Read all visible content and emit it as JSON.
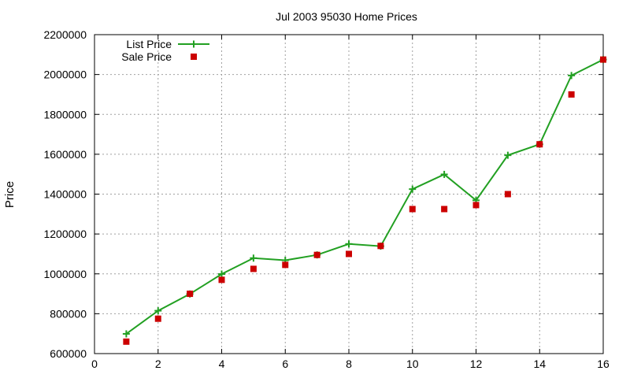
{
  "chart_data": {
    "type": "line",
    "title": "Jul 2003 95030 Home Prices",
    "xlabel": "",
    "ylabel": "Price",
    "xlim": [
      0,
      16
    ],
    "ylim": [
      600000,
      2200000
    ],
    "x_ticks": [
      0,
      2,
      4,
      6,
      8,
      10,
      12,
      14,
      16
    ],
    "y_ticks": [
      600000,
      800000,
      1000000,
      1200000,
      1400000,
      1600000,
      1800000,
      2000000,
      2200000
    ],
    "grid": true,
    "legend_position": "top-left",
    "series": [
      {
        "name": "List Price",
        "style": "lines+points",
        "marker": "plus",
        "color": "#22a022",
        "x": [
          1,
          2,
          3,
          4,
          5,
          6,
          7,
          8,
          9,
          10,
          11,
          12,
          13,
          14,
          15,
          16
        ],
        "values": [
          699000,
          815000,
          899000,
          999000,
          1079000,
          1068000,
          1095000,
          1150000,
          1139000,
          1425000,
          1499000,
          1369000,
          1595000,
          1650000,
          1995000,
          2075000
        ]
      },
      {
        "name": "Sale Price",
        "style": "points",
        "marker": "square",
        "color": "#cc0000",
        "x": [
          1,
          2,
          3,
          4,
          5,
          6,
          7,
          8,
          9,
          10,
          11,
          12,
          13,
          14,
          15,
          16
        ],
        "values": [
          660000,
          775000,
          900000,
          970000,
          1025000,
          1045000,
          1095000,
          1100000,
          1140000,
          1325000,
          1325000,
          1345000,
          1400000,
          1650000,
          1900000,
          2075000
        ]
      }
    ]
  }
}
